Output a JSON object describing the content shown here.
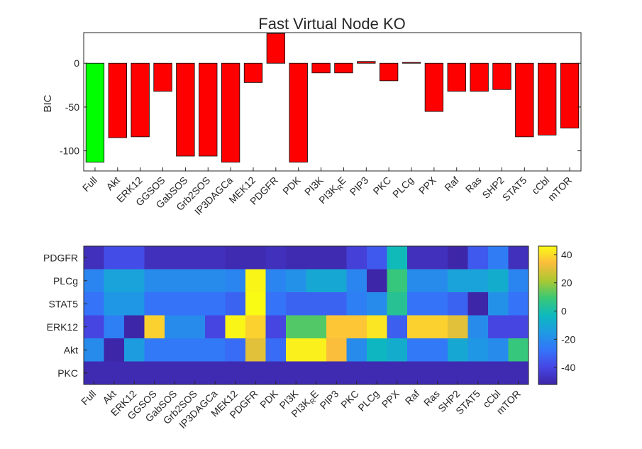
{
  "chart_data": [
    {
      "type": "bar",
      "title": "Fast Virtual Node KO",
      "ylabel": "BIC",
      "xlabel": "",
      "categories": [
        "Full",
        "Akt",
        "ERK12",
        "GGSOS",
        "GabSOS",
        "Grb2SOS",
        "IP3DAGCa",
        "MEK12",
        "PDGFR",
        "PDK",
        "PI3K",
        "PI3K_R_E",
        "PIP3",
        "PKC",
        "PLCg",
        "PPX",
        "Raf",
        "Ras",
        "SHP2",
        "STAT5",
        "cCbl",
        "mTOR"
      ],
      "values": [
        -113,
        -85,
        -84,
        -32,
        -106,
        -106,
        -113,
        -22,
        34,
        -113,
        -11,
        -11,
        2,
        -20,
        1,
        -55,
        -32,
        -32,
        -30,
        -84,
        -82,
        -74
      ],
      "ylim": [
        -123,
        35
      ],
      "yticks": [
        -100,
        -50,
        0
      ],
      "colors": {
        "highlight": "#00ff00",
        "default": "#ff0000",
        "edge": "#000000"
      },
      "highlight_index": 0
    },
    {
      "type": "heatmap",
      "x_categories": [
        "Full",
        "Akt",
        "ERK12",
        "GGSOS",
        "GabSOS",
        "Grb2SOS",
        "IP3DAGCa",
        "MEK12",
        "PDGFR",
        "PDK",
        "PI3K",
        "PI3K_R_E",
        "PIP3",
        "PKC",
        "PLCg",
        "PPX",
        "Raf",
        "Ras",
        "SHP2",
        "STAT5",
        "cCbl",
        "mTOR"
      ],
      "y_categories": [
        "PDGFR",
        "PLCg",
        "STAT5",
        "ERK12",
        "Akt",
        "PKC"
      ],
      "values": [
        [
          -48,
          -38,
          -38,
          -48,
          -48,
          -48,
          -48,
          -50,
          -50,
          -48,
          -50,
          -50,
          -50,
          -42,
          -35,
          -2,
          -48,
          -48,
          -52,
          -35,
          -25,
          -48
        ],
        [
          -22,
          -12,
          -12,
          -20,
          -20,
          -20,
          -20,
          -22,
          45,
          -22,
          -18,
          -10,
          -10,
          -22,
          -52,
          8,
          -20,
          -20,
          -12,
          -12,
          -8,
          -22
        ],
        [
          -28,
          -16,
          -16,
          -28,
          -28,
          -28,
          -28,
          -32,
          46,
          -28,
          -32,
          -32,
          -32,
          -24,
          -20,
          4,
          -28,
          -28,
          -32,
          -52,
          -18,
          -28
        ],
        [
          -40,
          -24,
          -52,
          38,
          -20,
          -20,
          -40,
          45,
          38,
          -40,
          12,
          12,
          36,
          36,
          42,
          -33,
          38,
          38,
          30,
          -20,
          -40,
          -40
        ],
        [
          -20,
          -52,
          -14,
          -26,
          -26,
          -26,
          -26,
          -30,
          30,
          -30,
          44,
          44,
          34,
          -20,
          -4,
          -8,
          -26,
          -26,
          -10,
          -16,
          -20,
          8
        ]
      ],
      "values_last_row": [
        -50,
        -50,
        -50,
        -50,
        -50,
        -50,
        -50,
        -50,
        -50,
        -50,
        -50,
        -50,
        -50,
        -50,
        -50,
        -50,
        -50,
        -50,
        -50,
        -50,
        -50,
        -50
      ],
      "colorbar": {
        "min": -52,
        "max": 46,
        "ticks": [
          40,
          20,
          0,
          -20,
          -40
        ]
      }
    }
  ]
}
